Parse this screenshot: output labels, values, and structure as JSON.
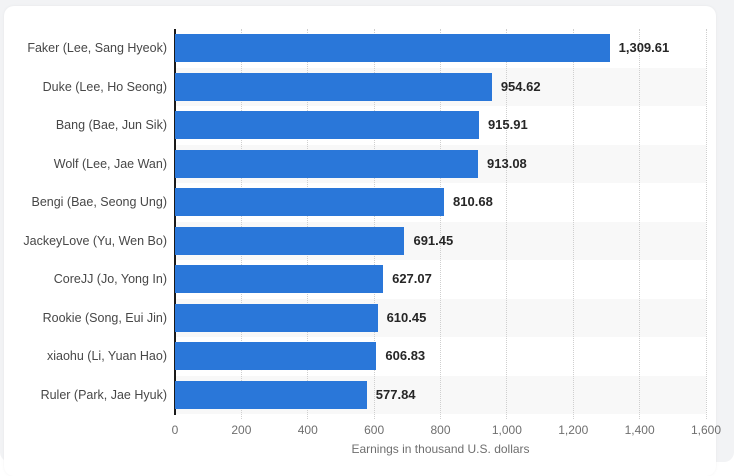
{
  "chart_data": {
    "type": "bar",
    "orientation": "horizontal",
    "categories": [
      "Faker (Lee, Sang Hyeok)",
      "Duke (Lee, Ho Seong)",
      "Bang (Bae, Jun Sik)",
      "Wolf (Lee, Jae Wan)",
      "Bengi (Bae, Seong Ung)",
      "JackeyLove (Yu, Wen Bo)",
      "CoreJJ (Jo, Yong In)",
      "Rookie (Song, Eui Jin)",
      "xiaohu (Li, Yuan Hao)",
      "Ruler (Park, Jae Hyuk)"
    ],
    "values": [
      1309.61,
      954.62,
      915.91,
      913.08,
      810.68,
      691.45,
      627.07,
      610.45,
      606.83,
      577.84
    ],
    "value_labels": [
      "1,309.61",
      "954.62",
      "915.91",
      "913.08",
      "810.68",
      "691.45",
      "627.07",
      "610.45",
      "606.83",
      "577.84"
    ],
    "xlabel": "Earnings in thousand U.S. dollars",
    "xlim": [
      0,
      1600
    ],
    "xticks": [
      0,
      200,
      400,
      600,
      800,
      1000,
      1200,
      1400,
      1600
    ],
    "xtick_labels": [
      "0",
      "200",
      "400",
      "600",
      "800",
      "1,000",
      "1,200",
      "1,400",
      "1,600"
    ],
    "grid": "vertical-dotted",
    "row_striping": "alternate-even-rows",
    "bar_color": "#2a77d9",
    "stripe_color": "#f8f8f8"
  }
}
